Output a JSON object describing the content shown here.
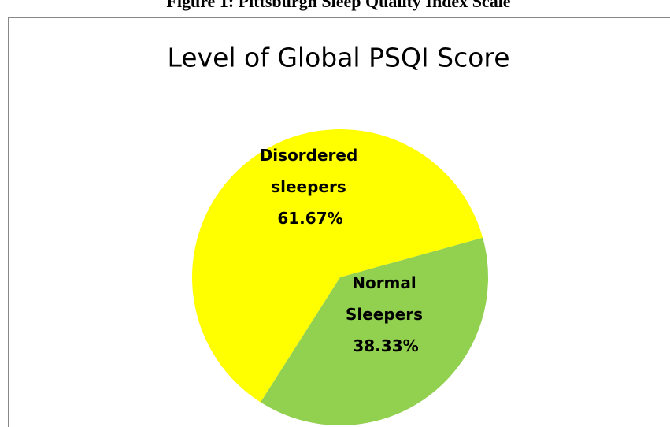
{
  "caption": "Figure 1: Pittsburgh Sleep Quality Index Scale",
  "chart_data": {
    "type": "pie",
    "title": "Level of Global PSQI Score",
    "categories": [
      "Disordered sleepers",
      "Normal Sleepers"
    ],
    "values": [
      61.67,
      38.33
    ],
    "value_labels": [
      "61.67%",
      "38.33%"
    ],
    "colors": [
      "#ffff00",
      "#92d050"
    ]
  }
}
